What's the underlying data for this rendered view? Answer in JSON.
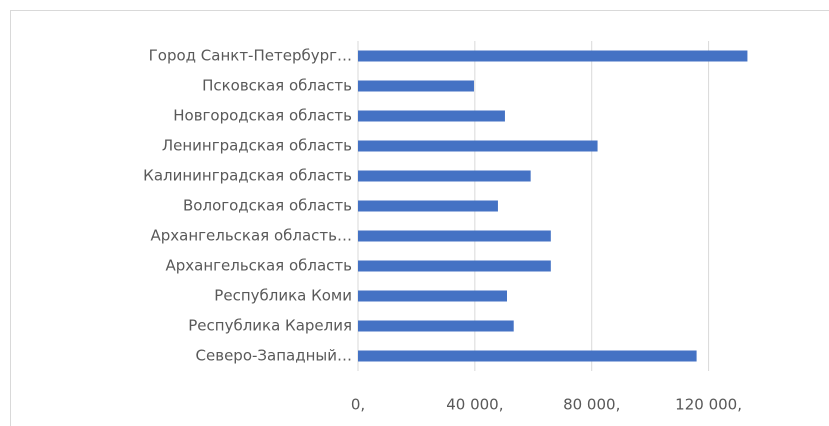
{
  "chart_data": {
    "type": "hbar",
    "categories": [
      "Город Санкт-Петербург…",
      "Псковская область",
      "Новгородская область",
      "Ленинградская область",
      "Калининградская область",
      "Вологодская область",
      "Архангельская область…",
      "Архангельская область",
      "Республика Коми",
      "Республика Карелия",
      "Северо-Западный…"
    ],
    "values": [
      133300,
      39700,
      50300,
      82000,
      59100,
      47900,
      66000,
      66000,
      51000,
      53300,
      115900
    ],
    "color": "#4472c4",
    "xlim": [
      0,
      140000
    ],
    "xticks": [
      {
        "value": 0,
        "label": "0,"
      },
      {
        "value": 40000,
        "label": "40 000,"
      },
      {
        "value": 80000,
        "label": "80 000,"
      },
      {
        "value": 120000,
        "label": "120 000,"
      }
    ],
    "grid": true
  }
}
